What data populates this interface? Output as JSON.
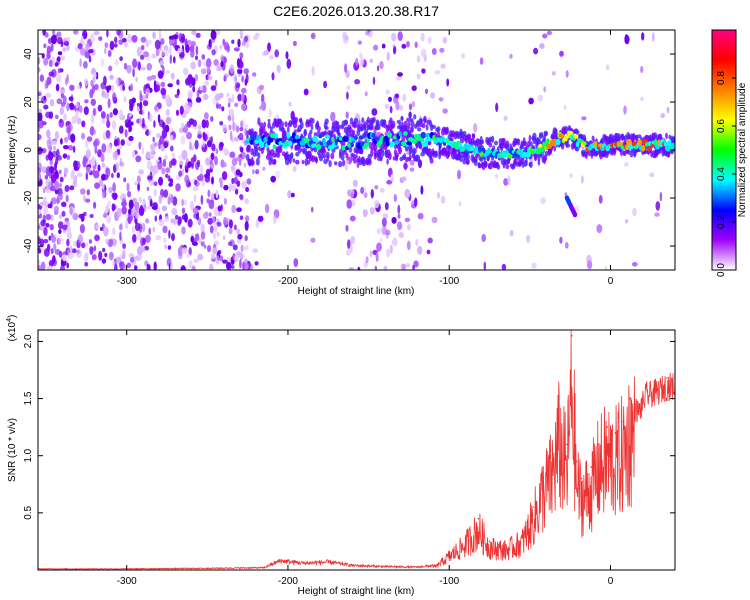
{
  "title": "C2E6.2026.013.20.38.R17",
  "chart_data": [
    {
      "type": "heatmap",
      "xlabel": "Height of straight line (km)",
      "ylabel": "Frequency (Hz)",
      "xlim": [
        -355,
        40
      ],
      "ylim": [
        -50,
        50
      ],
      "x_ticks": [
        -300,
        -200,
        -100,
        0
      ],
      "x_tick_labels": [
        "-300",
        "-200",
        "-100",
        "0"
      ],
      "y_ticks": [
        -40,
        -20,
        0,
        20,
        40
      ],
      "y_tick_labels": [
        "-40",
        "-20",
        "0",
        "20",
        "40"
      ],
      "colorbar": {
        "label": "Normalized spectral amplitude",
        "range": [
          0,
          1
        ],
        "ticks": [
          0.0,
          0.2,
          0.4,
          0.6,
          0.8
        ],
        "tick_labels": [
          "0.0",
          "0.2",
          "0.4",
          "0.6",
          "0.8"
        ],
        "colormap": [
          "#ffffff",
          "#a000ff",
          "#0000ff",
          "#00ffff",
          "#00ff00",
          "#ffff00",
          "#ff8000",
          "#ff0000",
          "#ff0080"
        ]
      },
      "ridge": [
        {
          "x": -225,
          "y": 3
        },
        {
          "x": -200,
          "y": 4
        },
        {
          "x": -170,
          "y": 3
        },
        {
          "x": -140,
          "y": 4
        },
        {
          "x": -120,
          "y": 5
        },
        {
          "x": -100,
          "y": 3
        },
        {
          "x": -80,
          "y": -1
        },
        {
          "x": -60,
          "y": -2
        },
        {
          "x": -45,
          "y": 0
        },
        {
          "x": -35,
          "y": 4
        },
        {
          "x": -25,
          "y": 6
        },
        {
          "x": -15,
          "y": 1
        },
        {
          "x": 0,
          "y": 2
        },
        {
          "x": 20,
          "y": 2
        },
        {
          "x": 40,
          "y": 2
        }
      ],
      "secondary_feature": {
        "x": [
          -27,
          -22
        ],
        "y": [
          -20,
          -27
        ]
      }
    },
    {
      "type": "line",
      "xlabel": "Height of straight line (km)",
      "ylabel": "SNR (10 * v/v)",
      "y_multiplier": "(x10",
      "y_multiplier_exp": "4",
      "y_multiplier_close": ")",
      "xlim": [
        -355,
        40
      ],
      "ylim": [
        0,
        2.1
      ],
      "x_ticks": [
        -300,
        -200,
        -100,
        0
      ],
      "x_tick_labels": [
        "-300",
        "-200",
        "-100",
        "0"
      ],
      "y_ticks": [
        0.5,
        1.0,
        1.5,
        2.0
      ],
      "y_tick_labels": [
        "0.5",
        "1.0",
        "1.5",
        "2.0"
      ],
      "series": [
        {
          "color": "#ee3333",
          "x": [
            -355,
            -300,
            -250,
            -215,
            -205,
            -190,
            -175,
            -160,
            -140,
            -120,
            -108,
            -100,
            -90,
            -82,
            -75,
            -65,
            -55,
            -48,
            -42,
            -36,
            -32,
            -27,
            -24,
            -21,
            -18,
            -12,
            -8,
            -2,
            3,
            8,
            12,
            18,
            22,
            28,
            35,
            40
          ],
          "y": [
            0.01,
            0.01,
            0.015,
            0.02,
            0.08,
            0.06,
            0.07,
            0.04,
            0.03,
            0.025,
            0.04,
            0.15,
            0.28,
            0.45,
            0.25,
            0.22,
            0.3,
            0.55,
            0.85,
            1.05,
            1.4,
            1.1,
            2.05,
            0.95,
            0.8,
            0.9,
            1.1,
            1.25,
            1.2,
            1.3,
            1.5,
            1.45,
            1.6,
            1.62,
            1.68,
            1.68
          ]
        }
      ]
    }
  ]
}
